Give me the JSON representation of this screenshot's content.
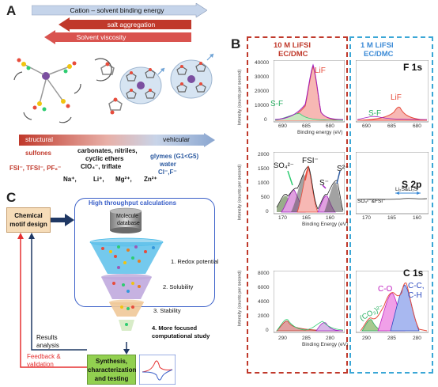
{
  "panel_a": {
    "letter": "A",
    "arrow_cation": "Cation – solvent binding energy",
    "arrow_salt": "salt aggregation",
    "arrow_visc": "Solvent viscosity",
    "bar_left": "structural",
    "bar_right": "vehicular",
    "sulfones": "sulfones",
    "mid_solvents_1": "carbonates, nitriles,",
    "mid_solvents_2": "cyclic ethers",
    "mid_solvents_3": "ClO₄⁻, triflate",
    "glymes": "glymes (G1<G5)",
    "water": "water",
    "anions_right": "Cl⁻,F⁻",
    "anions_left": "FSI⁻, TFSI⁻, PF₆⁻",
    "cations": [
      "Na⁺,",
      "Li⁺,",
      "Mg²⁺,",
      "Zn²⁺"
    ]
  },
  "panel_b": {
    "letter": "B",
    "col1_title_1": "10 M LiFSI",
    "col1_title_2": "EC/DMC",
    "col2_title_1": "1 M LiFSI",
    "col2_title_2": "EC/DMC",
    "f1s": {
      "title": "F 1s",
      "ylabel": "Intensity (counts per second)",
      "xlabel": "Binding energy (eV)",
      "yticks": [
        "40000",
        "30000",
        "20000",
        "10000",
        "0"
      ],
      "xticks_left": [
        "690",
        "685",
        "680"
      ],
      "xticks_right": [
        "690",
        "685",
        "680"
      ],
      "lif_left": "LiF",
      "sf_left": "S-F",
      "lif_right": "LiF",
      "sf_right": "S-F"
    },
    "s2p": {
      "title": "S 2p",
      "ylabel": "Intensity (counts per second)",
      "xlabel": "Binding Energy (eV)",
      "yticks": [
        "2000",
        "1500",
        "1000",
        "500",
        "0"
      ],
      "xticks_left": [
        "170",
        "165",
        "160"
      ],
      "xticks_right": [
        "170",
        "165",
        "160"
      ],
      "so4": "SO₄²⁻",
      "fsi": "FSI⁻",
      "s_minus": "S⁻",
      "s2_minus": "S²⁻",
      "right_left_label": "SO₄²⁻&FSI⁻",
      "right_right_label": "Li₂S&Li₂S"
    },
    "c1s": {
      "title": "C 1s",
      "ylabel": "Intensity (counts per second)",
      "xlabel": "Binding Energy (eV)",
      "yticks": [
        "8000",
        "6000",
        "4000",
        "2000",
        "0"
      ],
      "xticks_left": [
        "290",
        "285",
        "280"
      ],
      "xticks_right": [
        "290",
        "285",
        "280"
      ],
      "co3": "(CO₃)²⁻",
      "co": "C-O",
      "cc": "C-C,",
      "ch": "C-H"
    }
  },
  "panel_c": {
    "letter": "C",
    "chem_motif": "Chemical motif design",
    "htc_title": "High throughput calculations",
    "db_1": "Molecule",
    "db_2": "database",
    "step1": "1. Redox potential",
    "step2": "2. Solubility",
    "step3": "3. Stability",
    "step4_1": "4. More focused",
    "step4_2": "computational study",
    "results_1": "Results",
    "results_2": "analysis",
    "feedback_1": "Feedback &",
    "feedback_2": "validation",
    "synth_1": "Synthesis,",
    "synth_2": "characterization",
    "synth_3": "and testing"
  }
}
